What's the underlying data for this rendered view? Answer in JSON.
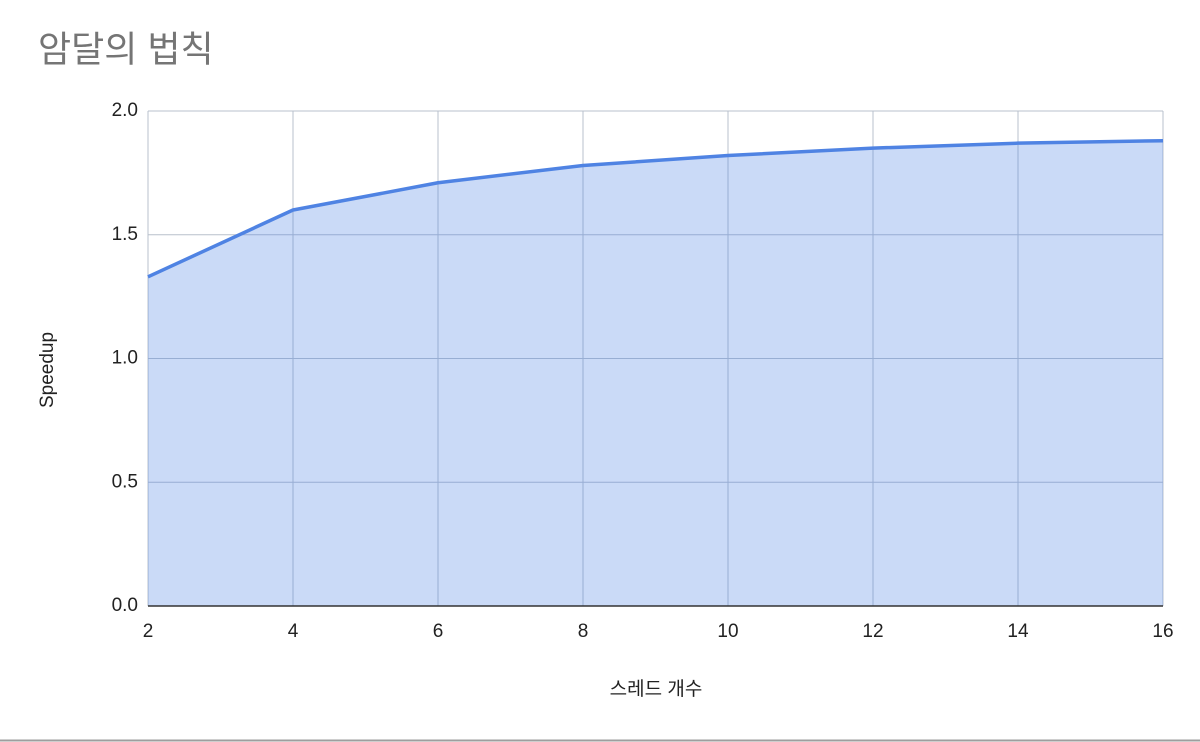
{
  "chart_data": {
    "type": "area",
    "title": "암달의 법칙",
    "x_label": "스레드 개수",
    "y_label": "Speedup",
    "x": [
      2,
      4,
      6,
      8,
      10,
      12,
      14,
      16
    ],
    "series": [
      {
        "name": "Speedup",
        "color": "#4f83e3",
        "values": [
          1.33,
          1.6,
          1.71,
          1.78,
          1.82,
          1.85,
          1.87,
          1.88
        ]
      }
    ],
    "xlim": [
      2,
      16
    ],
    "xticks": [
      2,
      4,
      6,
      8,
      10,
      12,
      14,
      16
    ],
    "ylim": [
      0,
      2
    ],
    "yticks": [
      {
        "value": 0,
        "label": "0.0"
      },
      0.5,
      {
        "value": 1,
        "label": "1.0"
      },
      1.5,
      {
        "value": 2,
        "label": "2.0"
      }
    ],
    "grid": true
  }
}
